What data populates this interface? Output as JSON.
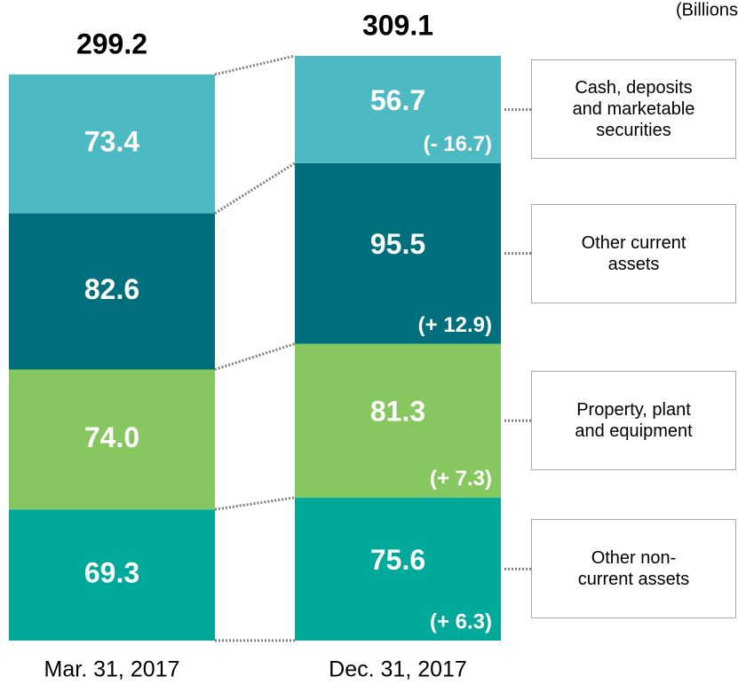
{
  "chart_data": {
    "type": "bar",
    "stacked": true,
    "unit": "(Billions",
    "categories": [
      "Mar. 31, 2017",
      "Dec. 31, 2017"
    ],
    "totals": [
      299.2,
      309.1
    ],
    "series": [
      {
        "name": "Cash, deposits and marketable securities",
        "color": "#4dbac3",
        "values": [
          73.4,
          56.7
        ],
        "changes": [
          null,
          -16.7
        ],
        "change_labels": [
          null,
          "(- 16.7)"
        ]
      },
      {
        "name": "Other current assets",
        "color": "#006f7d",
        "values": [
          82.6,
          95.5
        ],
        "changes": [
          null,
          12.9
        ],
        "change_labels": [
          null,
          "(+ 12.9)"
        ]
      },
      {
        "name": "Property, plant and equipment",
        "color": "#86c75f",
        "values": [
          74.0,
          81.3
        ],
        "value_labels": [
          "74.0",
          "81.3"
        ],
        "changes": [
          null,
          7.3
        ],
        "change_labels": [
          null,
          "(+ 7.3)"
        ]
      },
      {
        "name": "Other non-current assets",
        "color": "#00a99a",
        "values": [
          69.3,
          75.6
        ],
        "changes": [
          null,
          6.3
        ],
        "change_labels": [
          null,
          "(+ 6.3)"
        ]
      }
    ]
  }
}
